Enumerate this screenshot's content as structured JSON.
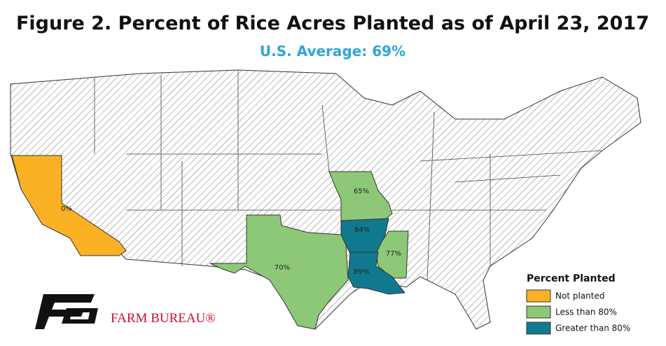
{
  "header": {
    "title": "Figure 2. Percent of Rice Acres Planted as of April 23, 2017",
    "subtitle": "U.S. Average: 69%"
  },
  "regions": [
    {
      "label": "0%",
      "color": "#fbb124"
    },
    {
      "label": "65%",
      "color": "#8dc878"
    },
    {
      "label": "84%",
      "color": "#11798f"
    },
    {
      "label": "70%",
      "color": "#8dc878"
    },
    {
      "label": "77%",
      "color": "#8dc878"
    },
    {
      "label": "89%",
      "color": "#11798f"
    }
  ],
  "legend": {
    "title": "Percent Planted",
    "items": [
      {
        "label": "Not planted",
        "color": "#fbb124"
      },
      {
        "label": "Less than 80%",
        "color": "#8dc878"
      },
      {
        "label": "Greater than 80%",
        "color": "#11798f"
      }
    ]
  },
  "logo": {
    "text": "FARM BUREAU®"
  }
}
